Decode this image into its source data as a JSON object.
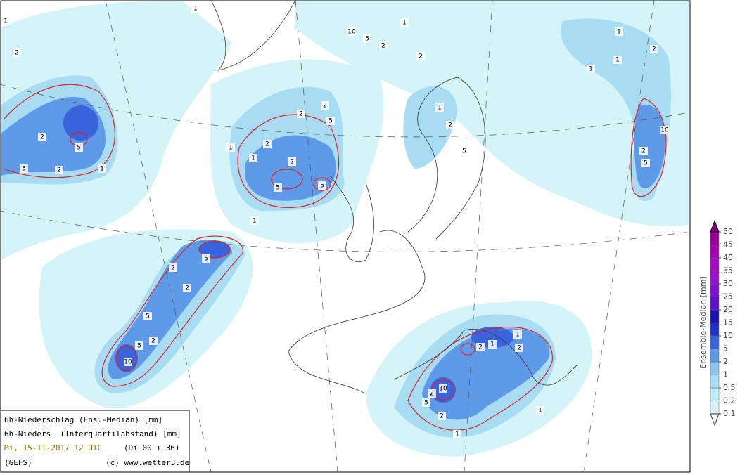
{
  "info": {
    "line1": "6h-Niederschlag (Ens.-Median) [mm]",
    "line2": "6h-Nieders. (Interquartilabstand) [mm]",
    "date": "Mi, 15-11-2017  12 UTC",
    "run": "(Di 00 + 36)",
    "model": "(GEFS)",
    "copyright": "(c) www.wetter3.de"
  },
  "colorbar": {
    "label": "Ensemble-Median [mm]",
    "levels": [
      0.1,
      0.2,
      0.5,
      1,
      2,
      5,
      10,
      15,
      20,
      25,
      30,
      35,
      40,
      45,
      50
    ],
    "colors": [
      "#d4f4f8",
      "#c2ecf6",
      "#a8dcf2",
      "#8cc6ee",
      "#5e9ae8",
      "#3a64dc",
      "#2230cc",
      "#1c10b8",
      "#5a10cc",
      "#8010d8",
      "#9a10d0",
      "#a808c8",
      "#a800b0",
      "#980098"
    ],
    "under_color": "#ffffff",
    "over_color": "#7a0080"
  },
  "contour_labels": [
    1,
    1,
    2,
    5,
    2,
    1,
    2,
    5,
    1,
    2,
    5,
    5,
    2,
    1,
    1,
    2,
    5,
    2,
    5,
    10,
    2,
    1,
    2,
    1,
    2,
    5,
    1,
    1,
    2,
    1,
    10,
    5,
    2,
    10,
    5,
    2,
    2,
    5,
    2,
    5,
    10,
    5,
    2,
    2,
    1,
    1,
    2,
    1,
    2,
    1
  ]
}
